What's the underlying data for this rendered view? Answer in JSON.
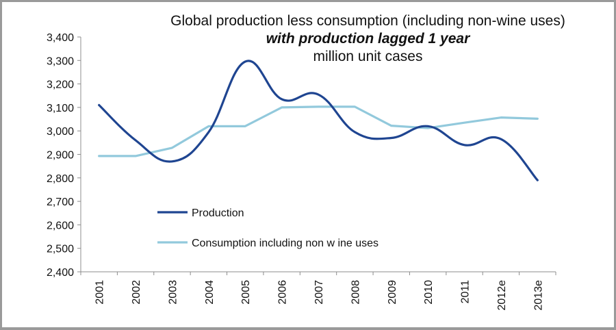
{
  "chart_data": {
    "type": "line",
    "title": "Global production less consumption (including non-wine uses)",
    "subtitle": "with production lagged 1 year",
    "units_label": "million unit cases",
    "xlabel": "",
    "ylabel": "",
    "categories": [
      "2001",
      "2002",
      "2003",
      "2004",
      "2005",
      "2006",
      "2007",
      "2008",
      "2009",
      "2010",
      "2011",
      "2012e",
      "2013e"
    ],
    "ylim": [
      2400,
      3400
    ],
    "yticks": [
      2400,
      2500,
      2600,
      2700,
      2800,
      2900,
      3000,
      3100,
      3200,
      3300,
      3400
    ],
    "ytick_labels": [
      "2,400",
      "2,500",
      "2,600",
      "2,700",
      "2,800",
      "2,900",
      "3,000",
      "3,100",
      "3,200",
      "3,300",
      "3,400"
    ],
    "grid": false,
    "legend_position": "lower-left inside plot",
    "series": [
      {
        "name": "Production",
        "color": "#1f4591",
        "smoothed": true,
        "values": [
          3110,
          2960,
          2870,
          2995,
          3295,
          3135,
          3155,
          2995,
          2970,
          3020,
          2940,
          2965,
          2790
        ]
      },
      {
        "name": "Consumption including non w ine uses",
        "color": "#92c9dc",
        "smoothed": false,
        "values": [
          2893,
          2893,
          2928,
          3020,
          3020,
          3100,
          3103,
          3103,
          3022,
          3012,
          3035,
          3057,
          3052
        ]
      }
    ]
  }
}
